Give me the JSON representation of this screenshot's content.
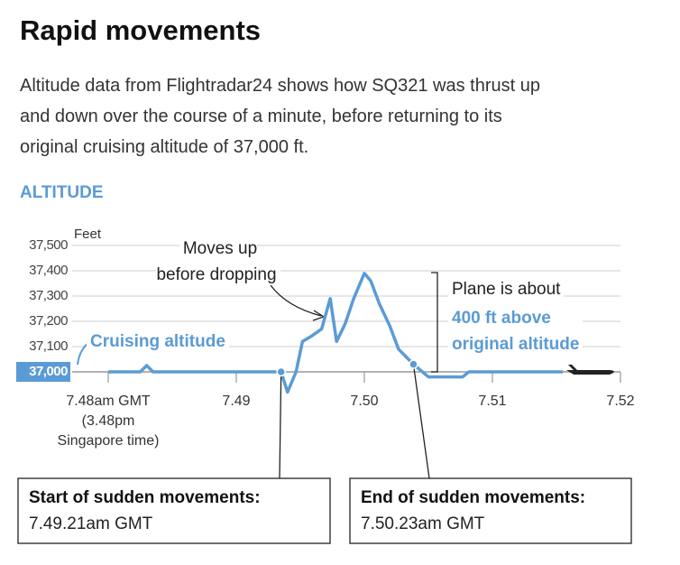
{
  "chart_data": {
    "type": "line",
    "title": "Rapid movements",
    "subtitle": "Altitude data from Flightradar24 shows how SQ321 was thrust up\nand down over the course of a minute, before returning to its\noriginal cruising altitude of 37,000 ft.",
    "section_label": "ALTITUDE",
    "y_label": "Feet",
    "color": "#5b9bd5",
    "x": [
      0,
      15,
      18,
      21,
      81,
      84,
      88,
      91,
      95,
      100,
      104,
      107,
      111,
      115,
      120,
      123,
      127,
      132,
      136,
      143,
      150,
      166,
      169,
      213
    ],
    "values": [
      37000,
      37000,
      37025,
      37000,
      37000,
      36920,
      37000,
      37120,
      37140,
      37170,
      37290,
      37120,
      37190,
      37290,
      37390,
      37360,
      37270,
      37180,
      37090,
      37030,
      36980,
      36980,
      37000,
      37000
    ],
    "xlim": [
      0,
      240
    ],
    "xticks": [
      {
        "value": 0,
        "label": "7.48am GMT\n(3.48pm\nSingapore time)"
      },
      {
        "value": 60,
        "label": "7.49"
      },
      {
        "value": 120,
        "label": "7.50"
      },
      {
        "value": 180,
        "label": "7.51"
      },
      {
        "value": 240,
        "label": "7.52"
      }
    ],
    "ylim": [
      37000,
      37500
    ],
    "yticks": [
      {
        "value": 37000,
        "label": "37,000"
      },
      {
        "value": 37100,
        "label": "37,100"
      },
      {
        "value": 37200,
        "label": "37,200"
      },
      {
        "value": 37300,
        "label": "37,300"
      },
      {
        "value": 37400,
        "label": "37,400"
      },
      {
        "value": 37500,
        "label": "37,500"
      }
    ],
    "grid": true,
    "markers": [
      {
        "x": 81,
        "y": 37000,
        "title": "Start of sudden movements:",
        "time": "7.49.21am GMT"
      },
      {
        "x": 143,
        "y": 37030,
        "title": "End of sudden movements:",
        "time": "7.50.23am GMT"
      }
    ],
    "callouts": [
      {
        "text": "Moves up\nbefore dropping"
      },
      {
        "text": "Cruising altitude"
      },
      {
        "text": "Plane is about"
      },
      {
        "text": "400 ft above\noriginal altitude"
      }
    ]
  }
}
